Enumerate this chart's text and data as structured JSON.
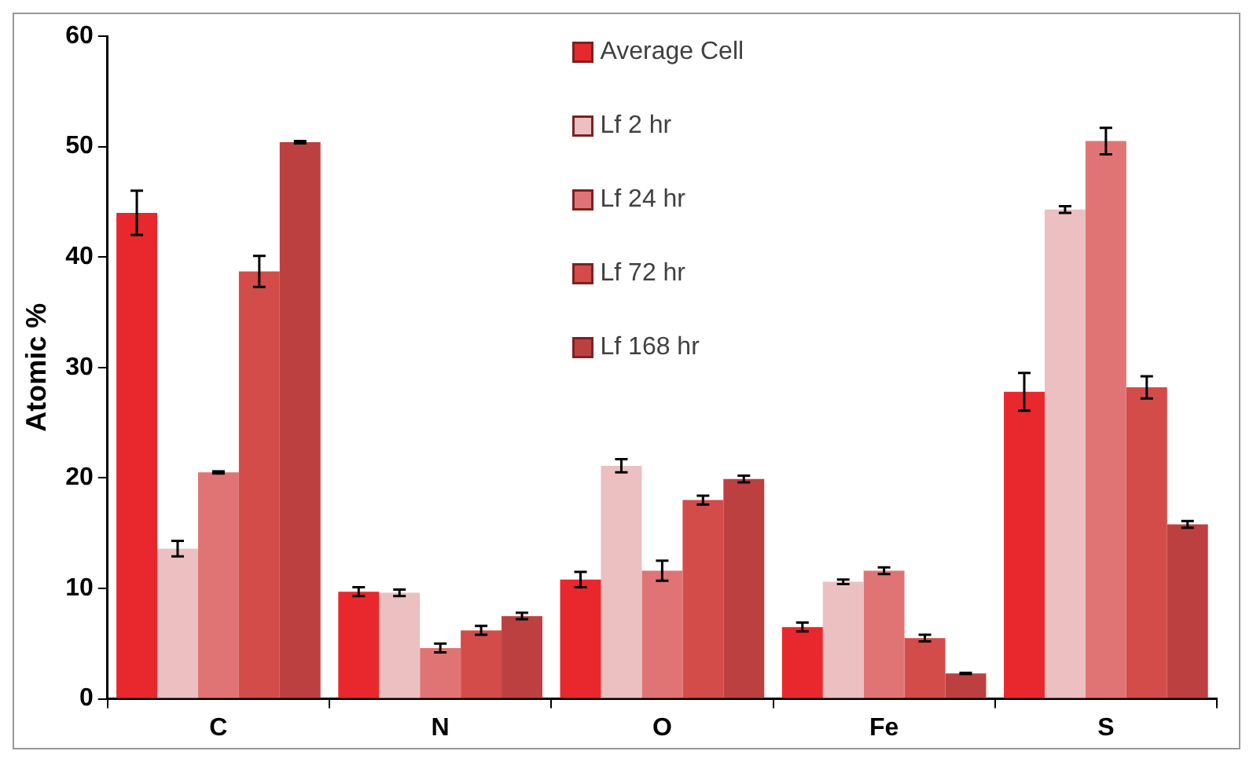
{
  "chart_data": {
    "type": "bar",
    "ylabel": "Atomic %",
    "categories": [
      "C",
      "N",
      "O",
      "Fe",
      "S"
    ],
    "series": [
      {
        "name": "Average Cell",
        "color": "#e8282c",
        "values": [
          44,
          9.7,
          10.8,
          6.5,
          27.8
        ],
        "errors": [
          2,
          0.4,
          0.7,
          0.4,
          1.7
        ]
      },
      {
        "name": "Lf 2 hr",
        "color": "#ecc0c0",
        "values": [
          13.6,
          9.6,
          21.1,
          10.6,
          44.3
        ],
        "errors": [
          0.7,
          0.3,
          0.6,
          0.2,
          0.3
        ]
      },
      {
        "name": "Lf 24 hr",
        "color": "#e07474",
        "values": [
          20.5,
          4.6,
          11.6,
          11.6,
          50.5
        ],
        "errors": [
          0.1,
          0.4,
          0.9,
          0.3,
          1.2
        ]
      },
      {
        "name": "Lf 72 hr",
        "color": "#d34c4a",
        "values": [
          38.7,
          6.2,
          18,
          5.5,
          28.2
        ],
        "errors": [
          1.4,
          0.4,
          0.4,
          0.3,
          1
        ]
      },
      {
        "name": "Lf 168 hr",
        "color": "#bd4040",
        "values": [
          50.4,
          7.5,
          19.9,
          2.3,
          15.8
        ],
        "errors": [
          0.1,
          0.3,
          0.3,
          0.05,
          0.3
        ]
      }
    ],
    "ylim": [
      0,
      60
    ],
    "yticks": [
      0,
      10,
      20,
      30,
      40,
      50,
      60
    ],
    "grid": false,
    "legend": "top"
  }
}
